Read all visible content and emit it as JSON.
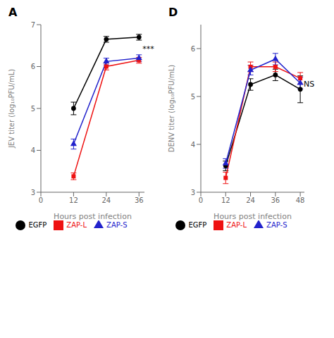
{
  "chart_data": [
    {
      "type": "line",
      "title": "A",
      "x_label": "Hours post infection",
      "y_label": "JEV titer (log₁₀PFU/mL)",
      "x": [
        12,
        24,
        36
      ],
      "series": [
        {
          "name": "EGFP",
          "color": "#000000",
          "marker": "circle",
          "values": [
            5.0,
            6.65,
            6.7
          ],
          "errors": [
            0.15,
            0.07,
            0.07
          ]
        },
        {
          "name": "ZAP-L",
          "color": "#ee1111",
          "marker": "square",
          "values": [
            3.38,
            6.0,
            6.15
          ],
          "errors": [
            0.08,
            0.08,
            0.07
          ]
        },
        {
          "name": "ZAP-S",
          "color": "#2222cc",
          "marker": "triangle",
          "values": [
            4.15,
            6.12,
            6.2
          ],
          "errors": [
            0.12,
            0.08,
            0.08
          ]
        }
      ],
      "xlim": [
        0,
        38
      ],
      "xticks": [
        0,
        12,
        24,
        36
      ],
      "ylim": [
        3,
        7
      ],
      "yticks": [
        3,
        4,
        5,
        6,
        7
      ],
      "annotations": [
        "***"
      ],
      "grid": false,
      "legend": "bottom"
    },
    {
      "type": "line",
      "title": "D",
      "x_label": "Hours post infection",
      "y_label": "DENV titer (log₁₀PFU/mL)",
      "x": [
        12,
        24,
        36,
        48
      ],
      "series": [
        {
          "name": "EGFP",
          "color": "#000000",
          "marker": "circle",
          "values": [
            3.55,
            5.25,
            5.45,
            5.15
          ],
          "errors": [
            0.1,
            0.12,
            0.12,
            0.28
          ]
        },
        {
          "name": "ZAP-L",
          "color": "#ee1111",
          "marker": "square",
          "values": [
            3.3,
            5.62,
            5.62,
            5.38
          ],
          "errors": [
            0.12,
            0.1,
            0.1,
            0.12
          ]
        },
        {
          "name": "ZAP-S",
          "color": "#2222cc",
          "marker": "triangle",
          "values": [
            3.6,
            5.55,
            5.78,
            5.28
          ],
          "errors": [
            0.1,
            0.1,
            0.12,
            0.12
          ]
        }
      ],
      "xlim": [
        0,
        50
      ],
      "xticks": [
        0,
        12,
        24,
        36,
        48
      ],
      "ylim": [
        3,
        6.5
      ],
      "yticks": [
        3,
        4,
        5,
        6
      ],
      "annotations": [
        "NS"
      ],
      "grid": false,
      "legend": "bottom"
    }
  ]
}
